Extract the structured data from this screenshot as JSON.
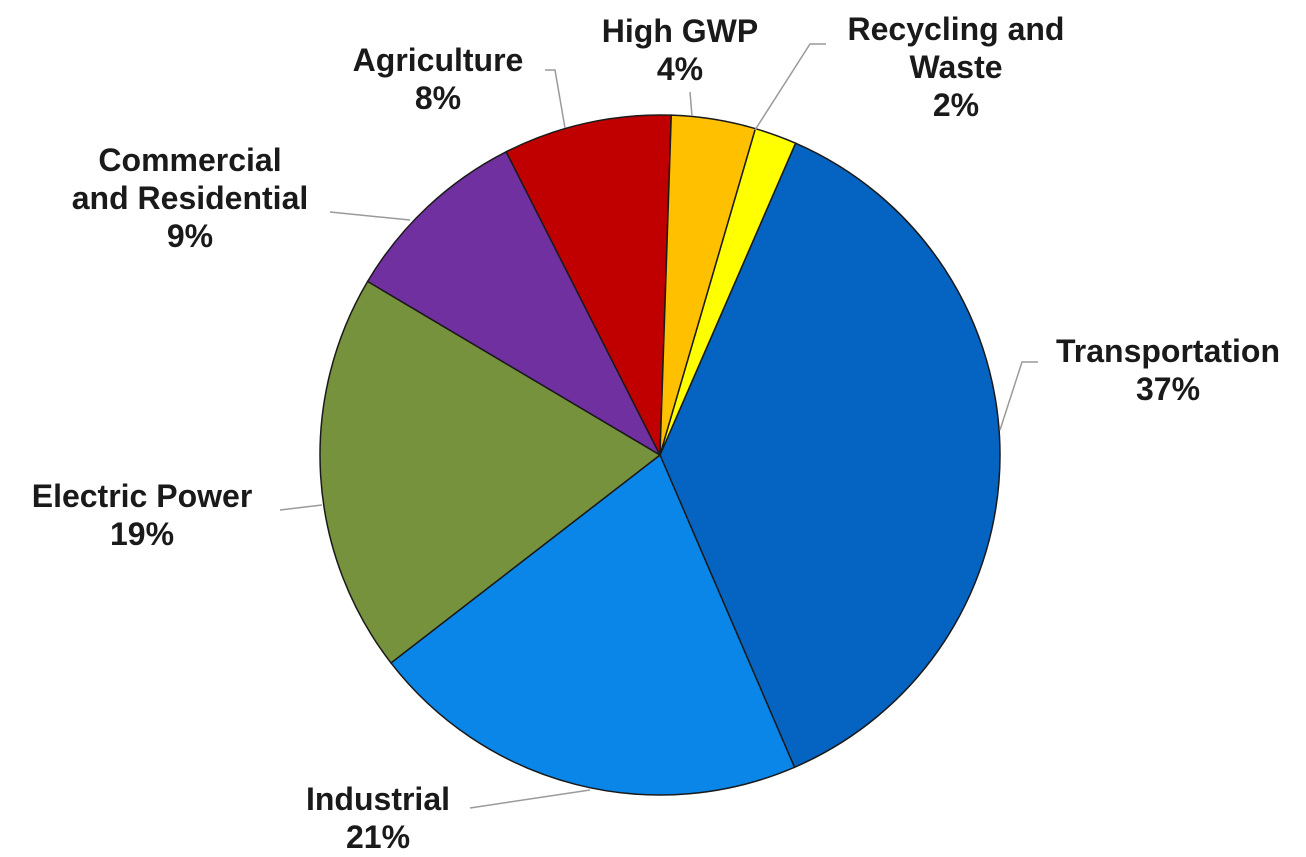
{
  "chart_data": {
    "type": "pie",
    "start": "12 o'clock, counterclockwise for the slices left of the top, clockwise for those on the right",
    "slices": [
      {
        "name": "Transportation",
        "percent_label": "37%",
        "value": 37,
        "color": "#0563C1"
      },
      {
        "name": "Industrial",
        "percent_label": "21%",
        "value": 21,
        "color": "#0A86E8"
      },
      {
        "name": "Electric Power",
        "percent_label": "19%",
        "value": 19,
        "color": "#76923C"
      },
      {
        "name": "Commercial and Residential",
        "percent_label": "9%",
        "value": 9,
        "color": "#7030A0"
      },
      {
        "name": "Agriculture",
        "percent_label": "8%",
        "value": 8,
        "color": "#C00000"
      },
      {
        "name": "High GWP",
        "percent_label": "4%",
        "value": 4,
        "color": "#FFC000"
      },
      {
        "name": "Recycling and Waste",
        "percent_label": "2%",
        "value": 2,
        "color": "#FFFF00"
      }
    ],
    "labels": [
      {
        "lines": [
          "Transportation",
          "37%"
        ]
      },
      {
        "lines": [
          "Industrial",
          "21%"
        ]
      },
      {
        "lines": [
          "Electric Power",
          "19%"
        ]
      },
      {
        "lines": [
          "Commercial",
          "and Residential",
          "9%"
        ]
      },
      {
        "lines": [
          "Agriculture",
          "8%"
        ]
      },
      {
        "lines": [
          "High GWP",
          "4%"
        ]
      },
      {
        "lines": [
          "Recycling and",
          "Waste",
          "2%"
        ]
      }
    ]
  }
}
